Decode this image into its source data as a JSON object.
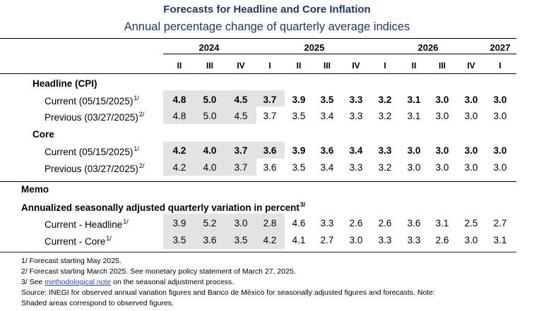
{
  "title": "Forecasts for Headline and Core Inflation",
  "subtitle": "Annual percentage change of quarterly average indices",
  "years": [
    {
      "label": "2024"
    },
    {
      "label": "2025"
    },
    {
      "label": "2026"
    },
    {
      "label": "2027"
    }
  ],
  "quarters": [
    "II",
    "III",
    "IV",
    "I",
    "II",
    "III",
    "IV",
    "I",
    "II",
    "III",
    "IV",
    "I"
  ],
  "sections": {
    "headline": "Headline (CPI)",
    "core": "Core",
    "memo": "Memo",
    "memo_sub": "Annualized seasonally adjusted quarterly variation in percent",
    "memo_sub_note": "3/"
  },
  "rows": {
    "headline_current": {
      "label": "Current (05/15/2025)",
      "note": "1/",
      "values": [
        "4.8",
        "5.0",
        "4.5",
        "3.7",
        "3.9",
        "3.5",
        "3.3",
        "3.2",
        "3.1",
        "3.0",
        "3.0",
        "3.0"
      ]
    },
    "headline_previous": {
      "label": "Previous (03/27/2025)",
      "note": "2/",
      "values": [
        "4.8",
        "5.0",
        "4.5",
        "3.7",
        "3.5",
        "3.4",
        "3.3",
        "3.2",
        "3.1",
        "3.0",
        "3.0",
        "3.0"
      ]
    },
    "core_current": {
      "label": "Current (05/15/2025)",
      "note": "1/",
      "values": [
        "4.2",
        "4.0",
        "3.7",
        "3.6",
        "3.9",
        "3.6",
        "3.4",
        "3.3",
        "3.0",
        "3.0",
        "3.0",
        "3.0"
      ]
    },
    "core_previous": {
      "label": "Previous (03/27/2025)",
      "note": "2/",
      "values": [
        "4.2",
        "4.0",
        "3.7",
        "3.6",
        "3.5",
        "3.4",
        "3.3",
        "3.2",
        "3.0",
        "3.0",
        "3.0",
        "3.0"
      ]
    },
    "memo_headline": {
      "label": "Current - Headline",
      "note": "1/",
      "values": [
        "3.9",
        "5.2",
        "3.0",
        "2.8",
        "4.6",
        "3.3",
        "2.6",
        "2.6",
        "3.6",
        "3.1",
        "2.5",
        "2.7"
      ]
    },
    "memo_core": {
      "label": "Current - Core",
      "note": "1/",
      "values": [
        "3.5",
        "3.6",
        "3.5",
        "4.2",
        "4.1",
        "2.7",
        "3.0",
        "3.3",
        "3.3",
        "2.6",
        "3.0",
        "3.1"
      ]
    }
  },
  "footnotes": {
    "f1": "1/ Forecast starting May 2025.",
    "f2": "2/ Forecast starting March 2025. See monetary policy statement of March 27, 2025.",
    "f3_pre": "3/ See ",
    "f3_link": "methodological note",
    "f3_post": " on the seasonal adjustment process.",
    "source": "Source: INEGI for observed annual variation figures and Banco de México for seasonally adjusted figures and forecasts. Note:",
    "shaded": "Shaded areas correspond to observed figures."
  }
}
